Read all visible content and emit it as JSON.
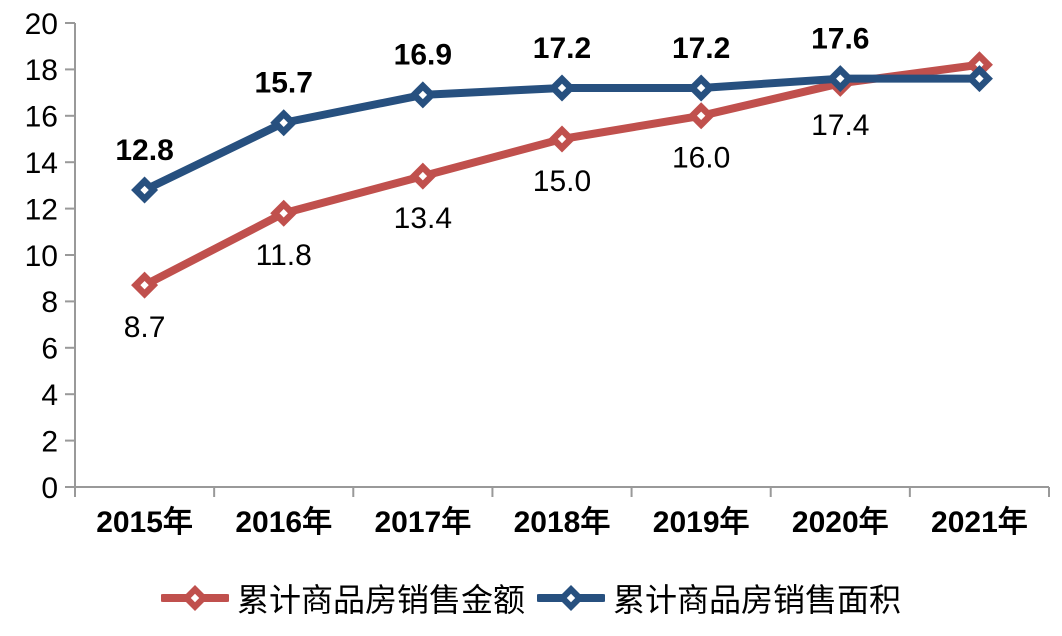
{
  "chart_data": {
    "type": "line",
    "categories": [
      "2015年",
      "2016年",
      "2017年",
      "2018年",
      "2019年",
      "2020年",
      "2021年"
    ],
    "series": [
      {
        "name": "累计商品房销售金额",
        "color": "#C0504D",
        "values": [
          8.7,
          11.8,
          13.4,
          15.0,
          16.0,
          17.4,
          18.2
        ],
        "labels": [
          "8.7",
          "11.8",
          "13.4",
          "15.0",
          "16.0",
          "17.4",
          ""
        ],
        "label_position": "below",
        "label_weight": "normal",
        "marker": "diamond"
      },
      {
        "name": "累计商品房销售面积",
        "color": "#27507F",
        "values": [
          12.8,
          15.7,
          16.9,
          17.2,
          17.2,
          17.6,
          17.6
        ],
        "labels": [
          "12.8",
          "15.7",
          "16.9",
          "17.2",
          "17.2",
          "17.6",
          ""
        ],
        "label_position": "above",
        "label_weight": "bold",
        "marker": "diamond"
      }
    ],
    "title": "",
    "xlabel": "",
    "ylabel": "",
    "ylim": [
      0,
      20
    ],
    "ytick_step": 2,
    "grid": false,
    "legend_position": "bottom",
    "axis_color": "#999999",
    "text_color": "#000000"
  }
}
